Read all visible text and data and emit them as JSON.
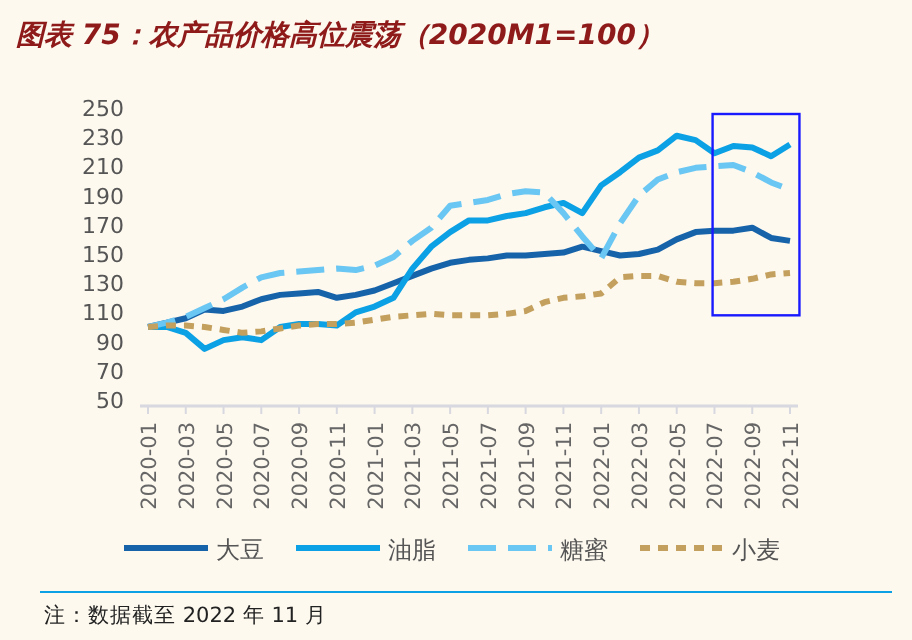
{
  "chart_data": {
    "type": "line",
    "title": "图表 75：农产品价格高位震荡（2020M1=100）",
    "categories": [
      "2020-01",
      null,
      "2020-03",
      null,
      "2020-05",
      null,
      "2020-07",
      null,
      "2020-09",
      null,
      "2020-11",
      null,
      "2021-01",
      null,
      "2021-03",
      null,
      "2021-05",
      null,
      "2021-07",
      null,
      "2021-09",
      null,
      "2021-11",
      null,
      "2022-01",
      null,
      "2022-03",
      null,
      "2022-05",
      null,
      "2022-07",
      null,
      "2022-09",
      null,
      "2022-11"
    ],
    "series": [
      {
        "name": "大豆",
        "color": "#1763aa",
        "line_style": "solid",
        "values": [
          100,
          103,
          106,
          112,
          111,
          114,
          119,
          122,
          123,
          124,
          120,
          122,
          125,
          130,
          135,
          140,
          144,
          146,
          147,
          149,
          149,
          150,
          151,
          155,
          152,
          149,
          150,
          153,
          160,
          165,
          166,
          166,
          168,
          161,
          159
        ]
      },
      {
        "name": "油脂",
        "color": "#0ca0e4",
        "line_style": "solid",
        "values": [
          100,
          100,
          96,
          85,
          91,
          93,
          91,
          100,
          102,
          102,
          101,
          110,
          114,
          120,
          140,
          155,
          165,
          173,
          173,
          176,
          178,
          182,
          185,
          178,
          197,
          206,
          216,
          221,
          231,
          228,
          219,
          224,
          223,
          217,
          225
        ]
      },
      {
        "name": "糖蜜",
        "color": "#6ac6f2",
        "line_style": "dashed",
        "values": [
          100,
          103,
          107,
          113,
          119,
          127,
          134,
          137,
          138,
          139,
          140,
          139,
          142,
          148,
          159,
          168,
          183,
          185,
          187,
          191,
          193,
          192,
          178,
          162,
          147,
          171,
          190,
          201,
          206,
          209,
          210,
          211,
          206,
          199,
          194
        ]
      },
      {
        "name": "小麦",
        "color": "#c4a05e",
        "line_style": "dotted",
        "values": [
          100,
          101,
          101,
          100,
          98,
          96,
          97,
          99,
          101,
          102,
          102,
          103,
          105,
          107,
          108,
          109,
          108,
          108,
          108,
          109,
          111,
          117,
          120,
          121,
          123,
          134,
          135,
          135,
          131,
          130,
          130,
          131,
          133,
          136,
          137
        ]
      }
    ],
    "ylim": [
      50,
      250
    ],
    "yticks": [
      50,
      70,
      90,
      110,
      130,
      150,
      170,
      190,
      210,
      230,
      250
    ],
    "legend": "bottom",
    "grid": false,
    "annotations": [
      "注：数据截至 2022 年 11 月"
    ]
  }
}
